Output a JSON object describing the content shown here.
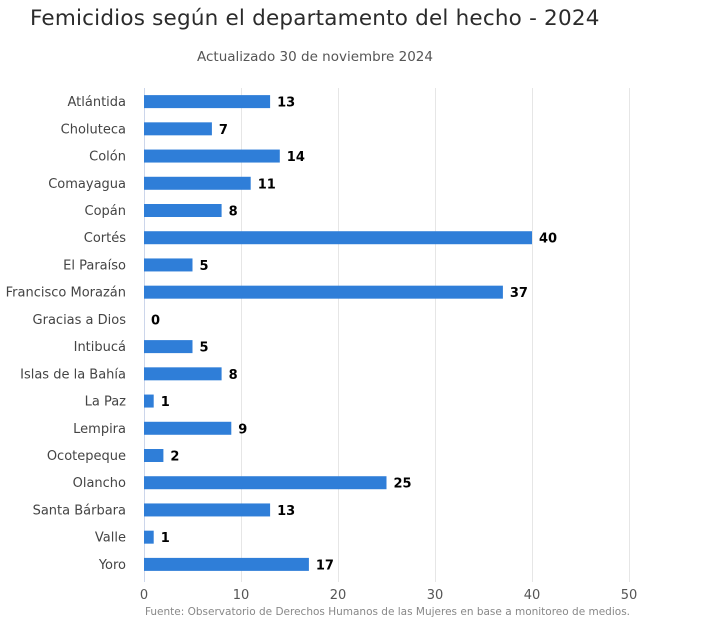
{
  "chart_data": {
    "type": "bar",
    "orientation": "horizontal",
    "title": "Femicidios según el departamento del hecho - 2024",
    "subtitle": "Actualizado 30 de noviembre 2024",
    "source": "Fuente: Observatorio de Derechos Humanos de las Mujeres en base a monitoreo de medios.",
    "xlabel": "",
    "ylabel": "",
    "categories": [
      "Atlántida",
      "Choluteca",
      "Colón",
      "Comayagua",
      "Copán",
      "Cortés",
      "El Paraíso",
      "Francisco Morazán",
      "Gracias a Dios",
      "Intibucá",
      "Islas de la Bahía",
      "La Paz",
      "Lempira",
      "Ocotepeque",
      "Olancho",
      "Santa Bárbara",
      "Valle",
      "Yoro"
    ],
    "values": [
      13,
      7,
      14,
      11,
      8,
      40,
      5,
      37,
      0,
      5,
      8,
      1,
      9,
      2,
      25,
      13,
      1,
      17
    ],
    "xlim": [
      0,
      50
    ],
    "xticks": [
      0,
      10,
      20,
      30,
      40,
      50
    ],
    "grid": true,
    "legend": "none",
    "bar_color": "#2f7ed8"
  }
}
